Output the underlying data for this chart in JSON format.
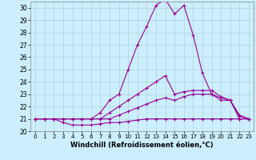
{
  "background_color": "#cceeff",
  "grid_color": "#b0d4d4",
  "line_color": "#990099",
  "marker": "+",
  "marker_size": 3,
  "linewidth": 0.8,
  "xlim": [
    -0.5,
    23.5
  ],
  "ylim": [
    20,
    30.5
  ],
  "yticks": [
    20,
    21,
    22,
    23,
    24,
    25,
    26,
    27,
    28,
    29,
    30
  ],
  "xticks": [
    0,
    1,
    2,
    3,
    4,
    5,
    6,
    7,
    8,
    9,
    10,
    11,
    12,
    13,
    14,
    15,
    16,
    17,
    18,
    19,
    20,
    21,
    22,
    23
  ],
  "xlabel": "Windchill (Refroidissement éolien,°C)",
  "series": [
    [
      21.0,
      21.0,
      21.0,
      20.7,
      20.5,
      20.5,
      20.5,
      20.6,
      20.7,
      20.7,
      20.8,
      20.9,
      21.0,
      21.0,
      21.0,
      21.0,
      21.0,
      21.0,
      21.0,
      21.0,
      21.0,
      21.0,
      21.0,
      21.0
    ],
    [
      21.0,
      21.0,
      21.0,
      21.0,
      21.0,
      21.0,
      21.0,
      21.0,
      21.0,
      21.3,
      21.6,
      21.9,
      22.2,
      22.5,
      22.7,
      22.5,
      22.8,
      23.0,
      23.0,
      23.0,
      22.7,
      22.5,
      21.2,
      21.0
    ],
    [
      21.0,
      21.0,
      21.0,
      21.0,
      21.0,
      21.0,
      21.0,
      21.0,
      21.5,
      22.0,
      22.5,
      23.0,
      23.5,
      24.0,
      24.5,
      23.0,
      23.2,
      23.3,
      23.3,
      23.3,
      22.8,
      22.5,
      21.3,
      21.0
    ],
    [
      21.0,
      21.0,
      21.0,
      21.0,
      21.0,
      21.0,
      21.0,
      21.5,
      22.5,
      23.0,
      25.0,
      27.0,
      28.5,
      30.2,
      30.7,
      29.5,
      30.2,
      27.8,
      24.7,
      23.0,
      22.5,
      22.5,
      21.0,
      21.0
    ]
  ]
}
